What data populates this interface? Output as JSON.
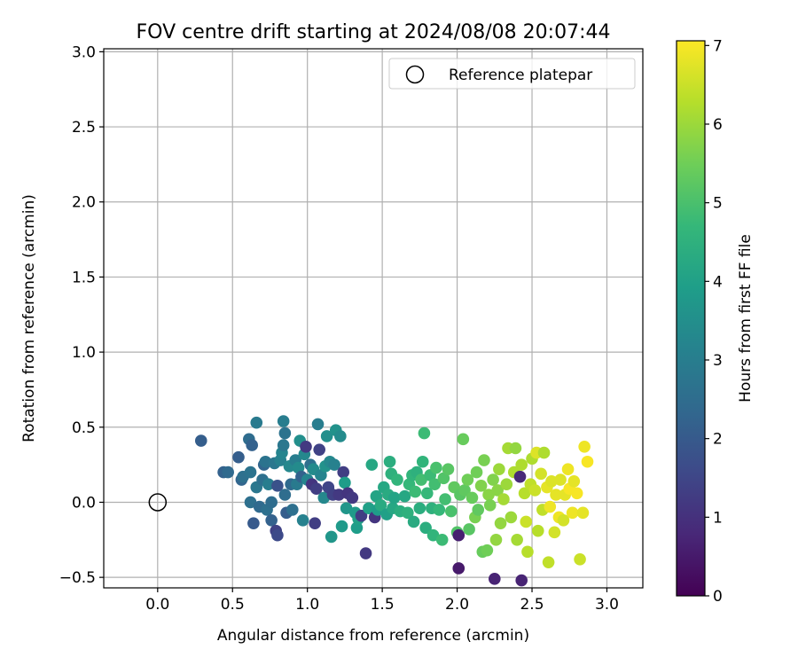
{
  "chart_data": {
    "type": "scatter",
    "title": "FOV centre drift starting at 2024/08/08 20:07:44",
    "xlabel": "Angular distance from reference (arcmin)",
    "ylabel": "Rotation from reference (arcmin)",
    "xlim": [
      -0.36,
      3.24
    ],
    "ylim": [
      -0.57,
      3.02
    ],
    "xticks": [
      0.0,
      0.5,
      1.0,
      1.5,
      2.0,
      2.5,
      3.0
    ],
    "xtick_labels": [
      "0.0",
      "0.5",
      "1.0",
      "1.5",
      "2.0",
      "2.5",
      "3.0"
    ],
    "yticks": [
      -0.5,
      0.0,
      0.5,
      1.0,
      1.5,
      2.0,
      2.5,
      3.0
    ],
    "ytick_labels": [
      "−0.5",
      "0.0",
      "0.5",
      "1.0",
      "1.5",
      "2.0",
      "2.5",
      "3.0"
    ],
    "grid": true,
    "legend": {
      "position": "top-right",
      "entries": [
        "Reference platepar"
      ]
    },
    "reference_point": {
      "x": 0.0,
      "y": 0.0
    },
    "colorbar": {
      "label": "Hours from first FF file",
      "range": [
        0,
        7.06
      ],
      "ticks": [
        0,
        1,
        2,
        3,
        4,
        5,
        6,
        7
      ],
      "tick_labels": [
        "0",
        "1",
        "2",
        "3",
        "4",
        "5",
        "6",
        "7"
      ],
      "colormap": "viridis",
      "stops": [
        "#440154",
        "#482878",
        "#3e4989",
        "#31688e",
        "#26828e",
        "#1f9e89",
        "#35b779",
        "#6ece58",
        "#b5de2b",
        "#fde725"
      ]
    },
    "points": [
      {
        "x": 0.29,
        "y": 0.41,
        "c": 2.1
      },
      {
        "x": 0.44,
        "y": 0.2,
        "c": 2.2
      },
      {
        "x": 0.47,
        "y": 0.2,
        "c": 2.4
      },
      {
        "x": 0.54,
        "y": 0.3,
        "c": 2.1
      },
      {
        "x": 0.56,
        "y": 0.15,
        "c": 2.3
      },
      {
        "x": 0.57,
        "y": 0.17,
        "c": 2.6
      },
      {
        "x": 0.61,
        "y": 0.42,
        "c": 2.5
      },
      {
        "x": 0.63,
        "y": 0.38,
        "c": 2.2
      },
      {
        "x": 0.62,
        "y": 0.2,
        "c": 2.7
      },
      {
        "x": 0.62,
        "y": 0.0,
        "c": 2.6
      },
      {
        "x": 0.64,
        "y": -0.14,
        "c": 2.0
      },
      {
        "x": 0.66,
        "y": 0.53,
        "c": 2.9
      },
      {
        "x": 0.66,
        "y": 0.1,
        "c": 2.8
      },
      {
        "x": 0.68,
        "y": -0.03,
        "c": 2.4
      },
      {
        "x": 0.7,
        "y": 0.15,
        "c": 2.6
      },
      {
        "x": 0.71,
        "y": 0.25,
        "c": 2.3
      },
      {
        "x": 0.72,
        "y": 0.27,
        "c": 2.7
      },
      {
        "x": 0.73,
        "y": -0.05,
        "c": 2.6
      },
      {
        "x": 0.74,
        "y": 0.12,
        "c": 3.0
      },
      {
        "x": 0.76,
        "y": 0.0,
        "c": 2.5
      },
      {
        "x": 0.76,
        "y": -0.12,
        "c": 2.2
      },
      {
        "x": 0.78,
        "y": 0.26,
        "c": 2.8
      },
      {
        "x": 0.79,
        "y": -0.19,
        "c": 1.4
      },
      {
        "x": 0.8,
        "y": -0.22,
        "c": 1.6
      },
      {
        "x": 0.8,
        "y": 0.11,
        "c": 1.8
      },
      {
        "x": 0.82,
        "y": 0.28,
        "c": 3.1
      },
      {
        "x": 0.83,
        "y": 0.33,
        "c": 3.2
      },
      {
        "x": 0.84,
        "y": 0.38,
        "c": 2.8
      },
      {
        "x": 0.84,
        "y": 0.54,
        "c": 3.0
      },
      {
        "x": 0.85,
        "y": 0.46,
        "c": 2.7
      },
      {
        "x": 0.85,
        "y": 0.05,
        "c": 2.5
      },
      {
        "x": 0.86,
        "y": -0.07,
        "c": 2.1
      },
      {
        "x": 0.88,
        "y": 0.24,
        "c": 3.3
      },
      {
        "x": 0.89,
        "y": 0.12,
        "c": 2.4
      },
      {
        "x": 0.9,
        "y": -0.05,
        "c": 2.6
      },
      {
        "x": 0.92,
        "y": 0.28,
        "c": 3.0
      },
      {
        "x": 0.93,
        "y": 0.12,
        "c": 2.9
      },
      {
        "x": 0.94,
        "y": 0.23,
        "c": 3.4
      },
      {
        "x": 0.95,
        "y": 0.41,
        "c": 3.5
      },
      {
        "x": 0.96,
        "y": 0.17,
        "c": 2.2
      },
      {
        "x": 0.97,
        "y": -0.12,
        "c": 3.1
      },
      {
        "x": 0.98,
        "y": 0.32,
        "c": 3.3
      },
      {
        "x": 0.99,
        "y": 0.37,
        "c": 1.2
      },
      {
        "x": 1.0,
        "y": 0.15,
        "c": 3.2
      },
      {
        "x": 1.02,
        "y": 0.25,
        "c": 2.6
      },
      {
        "x": 1.03,
        "y": 0.12,
        "c": 1.1
      },
      {
        "x": 1.04,
        "y": 0.22,
        "c": 3.4
      },
      {
        "x": 1.05,
        "y": -0.14,
        "c": 1.3
      },
      {
        "x": 1.06,
        "y": 0.09,
        "c": 1.3
      },
      {
        "x": 1.07,
        "y": 0.52,
        "c": 3.0
      },
      {
        "x": 1.08,
        "y": 0.35,
        "c": 1.4
      },
      {
        "x": 1.09,
        "y": 0.18,
        "c": 3.2
      },
      {
        "x": 1.11,
        "y": 0.03,
        "c": 3.3
      },
      {
        "x": 1.12,
        "y": 0.24,
        "c": 3.6
      },
      {
        "x": 1.13,
        "y": 0.44,
        "c": 3.5
      },
      {
        "x": 1.14,
        "y": 0.1,
        "c": 1.5
      },
      {
        "x": 1.15,
        "y": 0.27,
        "c": 3.3
      },
      {
        "x": 1.16,
        "y": -0.23,
        "c": 3.7
      },
      {
        "x": 1.17,
        "y": 0.05,
        "c": 1.4
      },
      {
        "x": 1.18,
        "y": 0.25,
        "c": 3.1
      },
      {
        "x": 1.19,
        "y": 0.48,
        "c": 3.6
      },
      {
        "x": 1.21,
        "y": 0.05,
        "c": 1.2
      },
      {
        "x": 1.22,
        "y": 0.44,
        "c": 3.4
      },
      {
        "x": 1.23,
        "y": -0.16,
        "c": 3.8
      },
      {
        "x": 1.24,
        "y": 0.2,
        "c": 1.3
      },
      {
        "x": 1.25,
        "y": 0.13,
        "c": 3.9
      },
      {
        "x": 1.26,
        "y": -0.04,
        "c": 3.7
      },
      {
        "x": 1.27,
        "y": 0.06,
        "c": 1.1
      },
      {
        "x": 1.3,
        "y": 0.03,
        "c": 1.2
      },
      {
        "x": 1.32,
        "y": -0.07,
        "c": 3.8
      },
      {
        "x": 1.33,
        "y": -0.17,
        "c": 3.9
      },
      {
        "x": 1.34,
        "y": -0.11,
        "c": 4.0
      },
      {
        "x": 1.36,
        "y": -0.09,
        "c": 1.3
      },
      {
        "x": 1.39,
        "y": -0.34,
        "c": 1.2
      },
      {
        "x": 1.41,
        "y": -0.04,
        "c": 4.0
      },
      {
        "x": 1.43,
        "y": 0.25,
        "c": 4.2
      },
      {
        "x": 1.45,
        "y": -0.1,
        "c": 1.1
      },
      {
        "x": 1.46,
        "y": 0.04,
        "c": 4.1
      },
      {
        "x": 1.47,
        "y": -0.05,
        "c": 3.9
      },
      {
        "x": 1.49,
        "y": -0.02,
        "c": 4.3
      },
      {
        "x": 1.51,
        "y": 0.1,
        "c": 4.2
      },
      {
        "x": 1.53,
        "y": -0.08,
        "c": 4.0
      },
      {
        "x": 1.54,
        "y": 0.05,
        "c": 4.3
      },
      {
        "x": 1.55,
        "y": 0.27,
        "c": 4.4
      },
      {
        "x": 1.56,
        "y": 0.19,
        "c": 4.5
      },
      {
        "x": 1.57,
        "y": -0.04,
        "c": 4.2
      },
      {
        "x": 1.58,
        "y": 0.03,
        "c": 4.1
      },
      {
        "x": 1.6,
        "y": 0.15,
        "c": 4.6
      },
      {
        "x": 1.62,
        "y": -0.06,
        "c": 4.4
      },
      {
        "x": 1.65,
        "y": 0.04,
        "c": 4.2
      },
      {
        "x": 1.67,
        "y": -0.07,
        "c": 4.5
      },
      {
        "x": 1.68,
        "y": 0.12,
        "c": 4.7
      },
      {
        "x": 1.7,
        "y": 0.18,
        "c": 4.6
      },
      {
        "x": 1.71,
        "y": -0.13,
        "c": 4.3
      },
      {
        "x": 1.72,
        "y": 0.07,
        "c": 4.8
      },
      {
        "x": 1.73,
        "y": 0.2,
        "c": 4.5
      },
      {
        "x": 1.75,
        "y": -0.04,
        "c": 4.4
      },
      {
        "x": 1.76,
        "y": 0.15,
        "c": 4.9
      },
      {
        "x": 1.77,
        "y": 0.27,
        "c": 4.6
      },
      {
        "x": 1.78,
        "y": 0.46,
        "c": 4.8
      },
      {
        "x": 1.79,
        "y": -0.17,
        "c": 4.4
      },
      {
        "x": 1.8,
        "y": 0.06,
        "c": 4.7
      },
      {
        "x": 1.82,
        "y": 0.18,
        "c": 4.8
      },
      {
        "x": 1.83,
        "y": -0.04,
        "c": 4.5
      },
      {
        "x": 1.84,
        "y": -0.22,
        "c": 4.6
      },
      {
        "x": 1.85,
        "y": 0.12,
        "c": 4.9
      },
      {
        "x": 1.86,
        "y": 0.23,
        "c": 5.0
      },
      {
        "x": 1.88,
        "y": -0.05,
        "c": 4.7
      },
      {
        "x": 1.9,
        "y": -0.25,
        "c": 4.8
      },
      {
        "x": 1.91,
        "y": 0.16,
        "c": 5.1
      },
      {
        "x": 1.92,
        "y": 0.02,
        "c": 4.9
      },
      {
        "x": 1.94,
        "y": 0.22,
        "c": 5.2
      },
      {
        "x": 1.96,
        "y": -0.06,
        "c": 5.0
      },
      {
        "x": 1.98,
        "y": 0.1,
        "c": 5.3
      },
      {
        "x": 2.0,
        "y": -0.2,
        "c": 5.1
      },
      {
        "x": 2.01,
        "y": -0.44,
        "c": 0.5
      },
      {
        "x": 2.01,
        "y": -0.22,
        "c": 0.6
      },
      {
        "x": 2.02,
        "y": 0.05,
        "c": 5.2
      },
      {
        "x": 2.04,
        "y": 0.42,
        "c": 5.4
      },
      {
        "x": 2.05,
        "y": 0.08,
        "c": 5.3
      },
      {
        "x": 2.07,
        "y": 0.15,
        "c": 5.5
      },
      {
        "x": 2.08,
        "y": -0.18,
        "c": 5.2
      },
      {
        "x": 2.1,
        "y": 0.03,
        "c": 5.4
      },
      {
        "x": 2.12,
        "y": -0.1,
        "c": 5.6
      },
      {
        "x": 2.13,
        "y": 0.2,
        "c": 5.5
      },
      {
        "x": 2.14,
        "y": -0.05,
        "c": 5.3
      },
      {
        "x": 2.16,
        "y": 0.11,
        "c": 5.7
      },
      {
        "x": 2.17,
        "y": -0.33,
        "c": 5.4
      },
      {
        "x": 2.18,
        "y": 0.28,
        "c": 5.6
      },
      {
        "x": 2.2,
        "y": -0.32,
        "c": 5.5
      },
      {
        "x": 2.21,
        "y": 0.05,
        "c": 5.8
      },
      {
        "x": 2.22,
        "y": -0.02,
        "c": 5.6
      },
      {
        "x": 2.24,
        "y": 0.15,
        "c": 5.7
      },
      {
        "x": 2.25,
        "y": -0.51,
        "c": 0.7
      },
      {
        "x": 2.26,
        "y": -0.25,
        "c": 5.9
      },
      {
        "x": 2.27,
        "y": 0.08,
        "c": 5.8
      },
      {
        "x": 2.28,
        "y": 0.22,
        "c": 6.0
      },
      {
        "x": 2.29,
        "y": -0.14,
        "c": 5.9
      },
      {
        "x": 2.31,
        "y": 0.02,
        "c": 6.1
      },
      {
        "x": 2.33,
        "y": 0.12,
        "c": 6.0
      },
      {
        "x": 2.34,
        "y": 0.36,
        "c": 6.1
      },
      {
        "x": 2.36,
        "y": -0.1,
        "c": 6.0
      },
      {
        "x": 2.38,
        "y": 0.2,
        "c": 6.2
      },
      {
        "x": 2.39,
        "y": 0.36,
        "c": 5.9
      },
      {
        "x": 2.4,
        "y": -0.25,
        "c": 6.1
      },
      {
        "x": 2.42,
        "y": 0.17,
        "c": 0.8
      },
      {
        "x": 2.43,
        "y": -0.52,
        "c": 0.7
      },
      {
        "x": 2.43,
        "y": 0.25,
        "c": 6.2
      },
      {
        "x": 2.45,
        "y": 0.06,
        "c": 6.3
      },
      {
        "x": 2.46,
        "y": -0.13,
        "c": 6.5
      },
      {
        "x": 2.47,
        "y": -0.33,
        "c": 6.3
      },
      {
        "x": 2.49,
        "y": 0.12,
        "c": 6.4
      },
      {
        "x": 2.5,
        "y": 0.29,
        "c": 6.2
      },
      {
        "x": 2.52,
        "y": 0.08,
        "c": 6.5
      },
      {
        "x": 2.53,
        "y": 0.33,
        "c": 6.7
      },
      {
        "x": 2.54,
        "y": -0.19,
        "c": 6.3
      },
      {
        "x": 2.56,
        "y": 0.19,
        "c": 6.6
      },
      {
        "x": 2.57,
        "y": -0.05,
        "c": 6.4
      },
      {
        "x": 2.58,
        "y": 0.33,
        "c": 6.2
      },
      {
        "x": 2.6,
        "y": 0.1,
        "c": 6.8
      },
      {
        "x": 2.61,
        "y": -0.4,
        "c": 6.4
      },
      {
        "x": 2.62,
        "y": -0.03,
        "c": 6.9
      },
      {
        "x": 2.63,
        "y": 0.14,
        "c": 6.7
      },
      {
        "x": 2.65,
        "y": -0.2,
        "c": 6.6
      },
      {
        "x": 2.66,
        "y": 0.05,
        "c": 6.8
      },
      {
        "x": 2.68,
        "y": -0.1,
        "c": 6.9
      },
      {
        "x": 2.69,
        "y": 0.15,
        "c": 6.7
      },
      {
        "x": 2.71,
        "y": -0.12,
        "c": 6.6
      },
      {
        "x": 2.72,
        "y": 0.05,
        "c": 6.8
      },
      {
        "x": 2.74,
        "y": 0.22,
        "c": 6.9
      },
      {
        "x": 2.75,
        "y": 0.09,
        "c": 7.0
      },
      {
        "x": 2.77,
        "y": -0.07,
        "c": 6.9
      },
      {
        "x": 2.78,
        "y": 0.14,
        "c": 6.8
      },
      {
        "x": 2.8,
        "y": 0.06,
        "c": 7.0
      },
      {
        "x": 2.82,
        "y": -0.38,
        "c": 6.5
      },
      {
        "x": 2.84,
        "y": -0.07,
        "c": 6.8
      },
      {
        "x": 2.85,
        "y": 0.37,
        "c": 6.9
      },
      {
        "x": 2.87,
        "y": 0.27,
        "c": 7.0
      }
    ]
  }
}
